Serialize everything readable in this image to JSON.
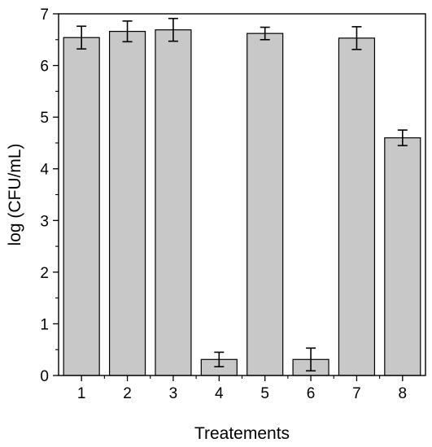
{
  "chart_data": {
    "type": "bar",
    "title": "",
    "xlabel": "Treatements",
    "ylabel": "log (CFU/mL)",
    "categories": [
      "1",
      "2",
      "3",
      "4",
      "5",
      "6",
      "7",
      "8"
    ],
    "values": [
      6.54,
      6.66,
      6.69,
      0.31,
      6.62,
      0.31,
      6.53,
      4.6
    ],
    "errors": [
      0.22,
      0.2,
      0.22,
      0.14,
      0.12,
      0.22,
      0.22,
      0.15
    ],
    "ylim": [
      0,
      7
    ],
    "yticks": [
      0,
      1,
      2,
      3,
      4,
      5,
      6,
      7
    ],
    "grid": false,
    "bar_color": "#c8c8c8",
    "edge_color": "#000000"
  }
}
